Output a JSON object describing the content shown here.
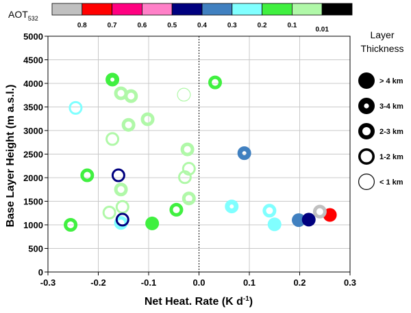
{
  "chart_data": {
    "type": "scatter",
    "xlabel": "Net Heat. Rate (K d-1)",
    "xlabel_main": "Net Heat. Rate (K d",
    "xlabel_sup": "-1",
    "xlabel_end": ")",
    "ylabel": "Base Layer Height (m a.s.l.)",
    "xlim": [
      -0.3,
      0.3
    ],
    "ylim": [
      0,
      5000
    ],
    "x_ticks": [
      -0.3,
      -0.2,
      -0.1,
      0.0,
      0.1,
      0.2,
      0.3
    ],
    "x_tick_labels": [
      "-0.3",
      "-0.2",
      "-0.1",
      "0.0",
      "0.1",
      "0.2",
      "0.3"
    ],
    "y_ticks": [
      0,
      500,
      1000,
      1500,
      2000,
      2500,
      3000,
      3500,
      4000,
      4500,
      5000
    ],
    "y_tick_labels": [
      "0",
      "500",
      "1000",
      "1500",
      "2000",
      "2500",
      "3000",
      "3500",
      "4000",
      "4500",
      "5000"
    ],
    "grid": true,
    "zero_line": "dotted vertical at x = 0",
    "colorbar": {
      "label_main": "AOT",
      "label_sub": "532",
      "colors": [
        "#c0c0c0",
        "#ff0000",
        "#ff0080",
        "#ff80c8",
        "#00007f",
        "#4080c0",
        "#80ffff",
        "#40f040",
        "#b0f8a8",
        "#000000"
      ],
      "tick_labels": [
        "0.8",
        "0.7",
        "0.6",
        "0.5",
        "0.4",
        "0.3",
        "0.2",
        "0.1",
        "0.01"
      ]
    },
    "legend": {
      "title_line1": "Layer",
      "title_line2": "Thickness",
      "placement": "right",
      "items": [
        {
          "label": "> 4 km",
          "ring": 1.0
        },
        {
          "label": "3-4 km",
          "ring": 0.7
        },
        {
          "label": "2-3 km",
          "ring": 0.5
        },
        {
          "label": "1-2 km",
          "ring": 0.3
        },
        {
          "label": "< 1 km",
          "ring": 0.1
        }
      ]
    },
    "points": [
      {
        "x": -0.172,
        "y": 4080,
        "color": "#40f040",
        "ring": 0.7
      },
      {
        "x": -0.155,
        "y": 3790,
        "color": "#b0f8a8",
        "ring": 0.5
      },
      {
        "x": -0.135,
        "y": 3730,
        "color": "#b0f8a8",
        "ring": 0.5
      },
      {
        "x": -0.245,
        "y": 3480,
        "color": "#80ffff",
        "ring": 0.3
      },
      {
        "x": -0.14,
        "y": 3120,
        "color": "#b0f8a8",
        "ring": 0.5
      },
      {
        "x": -0.102,
        "y": 3240,
        "color": "#b0f8a8",
        "ring": 0.5
      },
      {
        "x": -0.172,
        "y": 2820,
        "color": "#b0f8a8",
        "ring": 0.3
      },
      {
        "x": -0.222,
        "y": 2050,
        "color": "#40f040",
        "ring": 0.5
      },
      {
        "x": -0.16,
        "y": 2050,
        "color": "#00007f",
        "ring": 0.3
      },
      {
        "x": -0.155,
        "y": 1750,
        "color": "#b0f8a8",
        "ring": 0.5
      },
      {
        "x": -0.152,
        "y": 1380,
        "color": "#b0f8a8",
        "ring": 0.3
      },
      {
        "x": -0.178,
        "y": 1260,
        "color": "#b0f8a8",
        "ring": 0.3
      },
      {
        "x": -0.155,
        "y": 1040,
        "color": "#80ffff",
        "ring": 0.5
      },
      {
        "x": -0.152,
        "y": 1110,
        "color": "#00007f",
        "ring": 0.3
      },
      {
        "x": -0.255,
        "y": 1000,
        "color": "#40f040",
        "ring": 0.5
      },
      {
        "x": -0.093,
        "y": 1030,
        "color": "#40f040",
        "ring": 1.0
      },
      {
        "x": -0.045,
        "y": 1320,
        "color": "#40f040",
        "ring": 0.5
      },
      {
        "x": -0.03,
        "y": 3760,
        "color": "#b0f8a8",
        "ring": 0.1
      },
      {
        "x": -0.023,
        "y": 2600,
        "color": "#b0f8a8",
        "ring": 0.5
      },
      {
        "x": -0.02,
        "y": 2190,
        "color": "#b0f8a8",
        "ring": 0.3
      },
      {
        "x": -0.028,
        "y": 2010,
        "color": "#b0f8a8",
        "ring": 0.3
      },
      {
        "x": -0.02,
        "y": 1560,
        "color": "#b0f8a8",
        "ring": 0.5
      },
      {
        "x": 0.032,
        "y": 4020,
        "color": "#40f040",
        "ring": 0.5
      },
      {
        "x": 0.065,
        "y": 1390,
        "color": "#80ffff",
        "ring": 0.7
      },
      {
        "x": 0.09,
        "y": 2520,
        "color": "#4080c0",
        "ring": 0.7
      },
      {
        "x": 0.14,
        "y": 1300,
        "color": "#80ffff",
        "ring": 0.5
      },
      {
        "x": 0.15,
        "y": 1010,
        "color": "#80ffff",
        "ring": 1.0
      },
      {
        "x": 0.198,
        "y": 1100,
        "color": "#4080c0",
        "ring": 1.0
      },
      {
        "x": 0.218,
        "y": 1110,
        "color": "#00007f",
        "ring": 1.0
      },
      {
        "x": 0.26,
        "y": 1210,
        "color": "#ff0000",
        "ring": 1.0
      },
      {
        "x": 0.24,
        "y": 1280,
        "color": "#c0c0c0",
        "ring": 0.5
      }
    ]
  }
}
